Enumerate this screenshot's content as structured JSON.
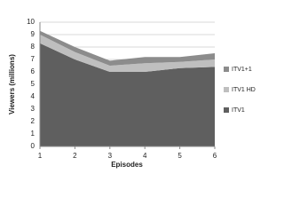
{
  "chart_data": {
    "type": "stacked_area",
    "x_label": "Episodes",
    "y_label": "Viewers (millions)",
    "x": [
      1,
      2,
      3,
      4,
      5,
      6
    ],
    "series": [
      {
        "name": "ITV1",
        "color": "#5f5f5f",
        "values": [
          8.3,
          7.0,
          6.0,
          6.0,
          6.3,
          6.4
        ]
      },
      {
        "name": "ITV1 HD",
        "color": "#bfbfbf",
        "values": [
          0.7,
          0.6,
          0.5,
          0.7,
          0.5,
          0.6
        ]
      },
      {
        "name": "ITV1+1",
        "color": "#8c8c8c",
        "values": [
          0.3,
          0.4,
          0.4,
          0.5,
          0.4,
          0.5
        ]
      }
    ],
    "xlim": [
      1,
      6
    ],
    "xticks": [
      1,
      2,
      3,
      4,
      5,
      6
    ],
    "ylim": [
      0,
      10
    ],
    "yticks": [
      0,
      1,
      2,
      3,
      4,
      5,
      6,
      7,
      8,
      9,
      10
    ],
    "grid": true,
    "legend": "right"
  }
}
